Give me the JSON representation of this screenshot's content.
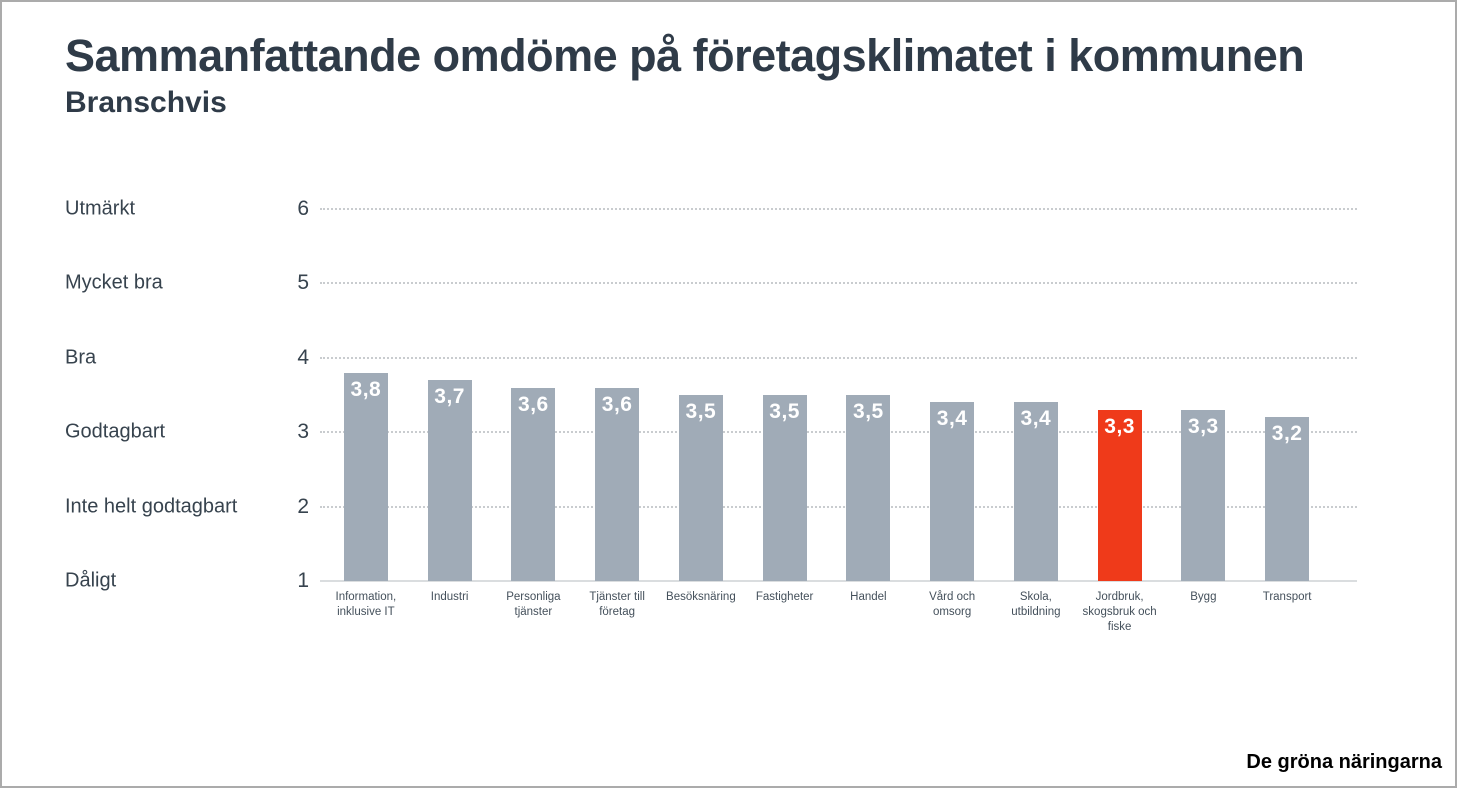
{
  "header": {
    "title": "Sammanfattande omdöme på företagsklimatet i kommunen",
    "subtitle": "Branschvis"
  },
  "footer": {
    "source_label": "De gröna näringarna"
  },
  "chart_data": {
    "type": "bar",
    "title": "Sammanfattande omdöme på företagsklimatet i kommunen",
    "subtitle": "Branschvis",
    "categories": [
      "Information, inklusive IT",
      "Industri",
      "Personliga tjänster",
      "Tjänster till företag",
      "Besöksnäring",
      "Fastigheter",
      "Handel",
      "Vård och omsorg",
      "Skola, utbildning",
      "Jordbruk, skogsbruk och fiske",
      "Bygg",
      "Transport"
    ],
    "values": [
      3.8,
      3.7,
      3.6,
      3.6,
      3.5,
      3.5,
      3.5,
      3.4,
      3.4,
      3.3,
      3.3,
      3.2
    ],
    "value_labels": [
      "3,8",
      "3,7",
      "3,6",
      "3,6",
      "3,5",
      "3,5",
      "3,5",
      "3,4",
      "3,4",
      "3,3",
      "3,3",
      "3,2"
    ],
    "highlight_index": 9,
    "colors": {
      "bar": "#a0abb7",
      "highlight": "#ef3a1a",
      "gridline": "#c9cccf",
      "baseline": "#dadddf",
      "axis_text": "#37434e",
      "category_text": "#44505b",
      "value_text": "#ffffff"
    },
    "y_axis": {
      "min": 1,
      "max": 6,
      "ticks": [
        {
          "value": 6,
          "number": "6",
          "label": "Utmärkt"
        },
        {
          "value": 5,
          "number": "5",
          "label": "Mycket bra"
        },
        {
          "value": 4,
          "number": "4",
          "label": "Bra"
        },
        {
          "value": 3,
          "number": "3",
          "label": "Godtagbart"
        },
        {
          "value": 2,
          "number": "2",
          "label": "Inte helt godtagbart"
        },
        {
          "value": 1,
          "number": "1",
          "label": "Dåligt"
        }
      ]
    },
    "grid": "horizontal dotted, solid baseline at minimum",
    "legend": "none",
    "xlabel": "",
    "ylabel": ""
  }
}
